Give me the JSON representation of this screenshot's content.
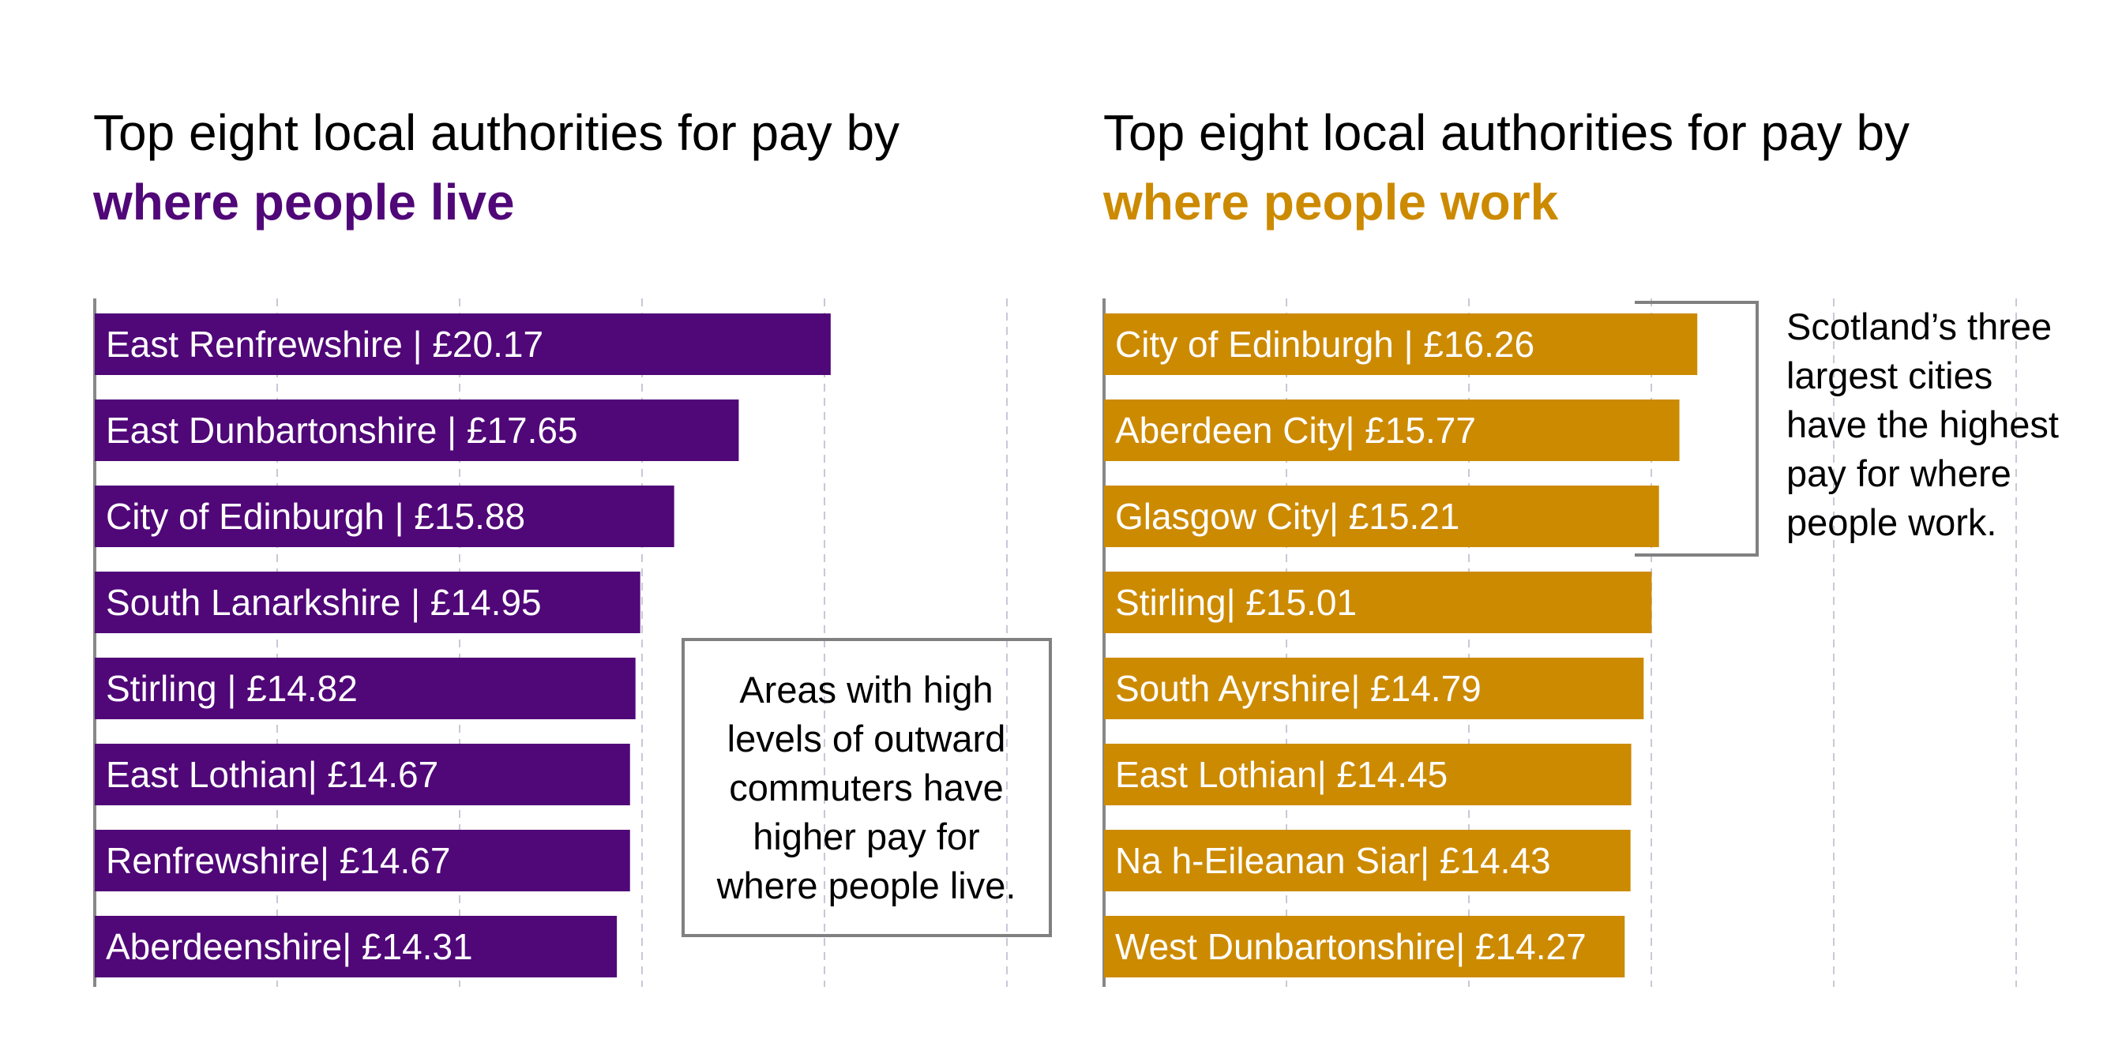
{
  "colors": {
    "live": "#500778",
    "work": "#cc8a00",
    "bracket": "#808080",
    "grid": "#c8c8d8",
    "axis": "#888888"
  },
  "chart_data": [
    {
      "type": "bar",
      "orientation": "horizontal",
      "title": "Top eight local authorities for pay by",
      "subtitle": "where people live",
      "xlabel": "",
      "ylabel": "",
      "categories": [
        "East Renfrewshire",
        "East Dunbartonshire",
        "City of Edinburgh",
        "South Lanarkshire",
        "Stirling",
        "East Lothian",
        "Renfrewshire",
        "Aberdeenshire"
      ],
      "values": [
        20.17,
        17.65,
        15.88,
        14.95,
        14.82,
        14.67,
        14.67,
        14.31
      ],
      "labels": [
        "East Renfrewshire | £20.17",
        "East Dunbartonshire | £17.65",
        "City of Edinburgh | £15.88",
        "South Lanarkshire | £14.95",
        "Stirling | £14.82",
        "East Lothian| £14.67",
        "Renfrewshire| £14.67",
        "Aberdeenshire| £14.31"
      ],
      "xlim": [
        0,
        25
      ],
      "grid": true,
      "annotation": [
        "Areas with high",
        "levels of outward",
        "commuters have",
        "higher pay for",
        "where people live."
      ]
    },
    {
      "type": "bar",
      "orientation": "horizontal",
      "title": "Top eight local authorities for pay by",
      "subtitle": "where people work",
      "xlabel": "",
      "ylabel": "",
      "categories": [
        "City of Edinburgh",
        "Aberdeen City",
        "Glasgow City",
        "Stirling",
        "South Ayrshire",
        "East Lothian",
        "Na h-Eileanan Siar",
        "West Dunbartonshire"
      ],
      "values": [
        16.26,
        15.77,
        15.21,
        15.01,
        14.79,
        14.45,
        14.43,
        14.27
      ],
      "labels": [
        "City of Edinburgh | £16.26",
        "Aberdeen City| £15.77",
        "Glasgow City| £15.21",
        "Stirling| £15.01",
        "South Ayrshire| £14.79",
        "East Lothian| £14.45",
        "Na h-Eileanan Siar| £14.43",
        "West Dunbartonshire| £14.27"
      ],
      "xlim": [
        0,
        25
      ],
      "grid": true,
      "annotation": [
        "Scotland’s three",
        "largest cities",
        "have the highest",
        "pay for where",
        "people work."
      ]
    }
  ]
}
